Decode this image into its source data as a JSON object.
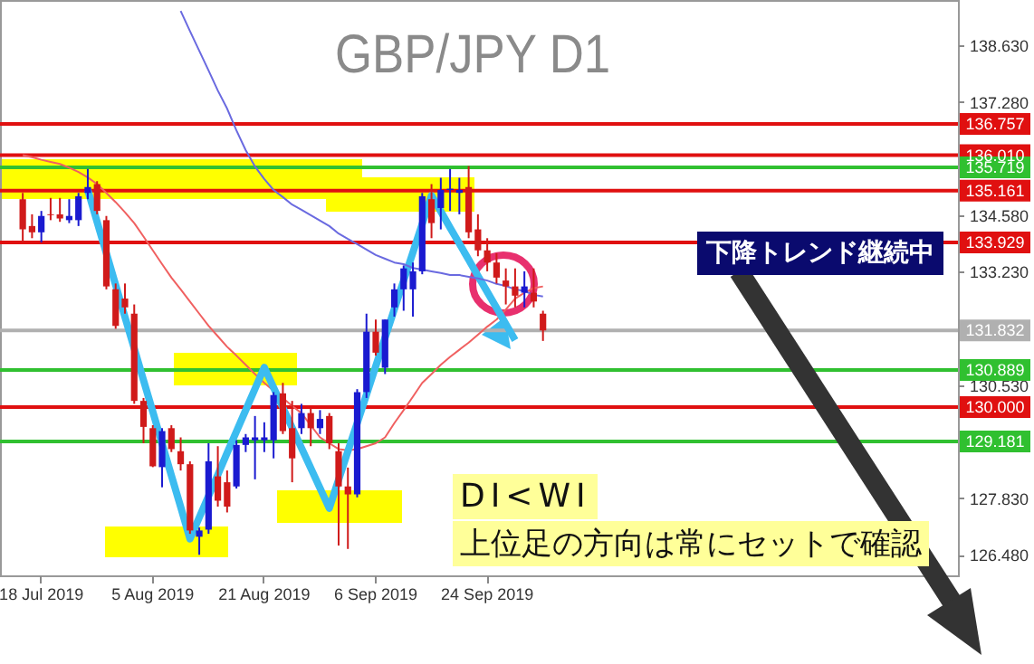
{
  "chart_data": {
    "type": "candlestick",
    "title": "GBP/JPY D1",
    "categories": [
      null,
      null,
      "18 Jul 2019",
      null,
      null,
      null,
      null,
      null,
      null,
      null,
      null,
      null,
      null,
      null,
      "5 Aug 2019",
      null,
      null,
      null,
      null,
      null,
      null,
      null,
      null,
      null,
      null,
      null,
      "21 Aug 2019",
      null,
      null,
      null,
      null,
      null,
      null,
      null,
      null,
      null,
      null,
      null,
      "6 Sep 2019",
      null,
      null,
      null,
      null,
      null,
      null,
      null,
      null,
      null,
      null,
      null,
      "24 Sep 2019",
      null,
      null,
      null,
      null,
      null,
      null
    ],
    "ohlc": [
      [
        134.96,
        135.11,
        133.93,
        134.24
      ],
      [
        134.32,
        134.6,
        134.03,
        134.17
      ],
      [
        134.17,
        134.68,
        133.93,
        134.56
      ],
      [
        134.6,
        134.99,
        134.46,
        134.58
      ],
      [
        134.6,
        134.99,
        134.42,
        134.5
      ],
      [
        134.46,
        134.96,
        134.39,
        134.56
      ],
      [
        134.46,
        135.11,
        134.32,
        135.03
      ],
      [
        135.11,
        135.68,
        134.96,
        135.25
      ],
      [
        135.32,
        135.39,
        134.6,
        134.68
      ],
      [
        134.46,
        134.56,
        132.81,
        132.88
      ],
      [
        132.81,
        132.95,
        131.87,
        131.94
      ],
      [
        132.59,
        132.95,
        132.23,
        132.38
      ],
      [
        132.23,
        132.45,
        130.08,
        130.15
      ],
      [
        130.15,
        130.22,
        129.14,
        129.53
      ],
      [
        129.5,
        129.57,
        128.57,
        128.59
      ],
      [
        128.57,
        129.5,
        128.09,
        129.43
      ],
      [
        129.5,
        129.57,
        128.93,
        129.0
      ],
      [
        128.95,
        129.28,
        128.49,
        128.64
      ],
      [
        128.64,
        128.71,
        126.98,
        127.06
      ],
      [
        126.91,
        127.13,
        126.48,
        127.06
      ],
      [
        127.08,
        129.14,
        126.98,
        128.71
      ],
      [
        128.35,
        129.07,
        127.63,
        127.77
      ],
      [
        128.21,
        128.49,
        127.49,
        127.63
      ],
      [
        128.11,
        129.21,
        128.06,
        129.1
      ],
      [
        129.1,
        129.36,
        128.93,
        129.28
      ],
      [
        129.21,
        129.79,
        128.28,
        129.28
      ],
      [
        129.21,
        129.64,
        128.93,
        129.28
      ],
      [
        129.21,
        130.36,
        128.78,
        130.29
      ],
      [
        130.33,
        130.58,
        129.36,
        129.43
      ],
      [
        129.5,
        130.15,
        128.21,
        128.78
      ],
      [
        129.5,
        130.08,
        129.36,
        129.86
      ],
      [
        129.86,
        130.0,
        129.07,
        129.5
      ],
      [
        129.5,
        129.93,
        129.36,
        129.72
      ],
      [
        129.79,
        129.86,
        129.0,
        129.14
      ],
      [
        128.95,
        129.14,
        126.7,
        128.11
      ],
      [
        128.11,
        128.56,
        126.62,
        127.92
      ],
      [
        127.92,
        130.43,
        127.85,
        130.36
      ],
      [
        130.36,
        132.23,
        130.22,
        131.8
      ],
      [
        131.8,
        132.09,
        131.23,
        131.3
      ],
      [
        130.94,
        132.09,
        130.79,
        132.09
      ],
      [
        132.38,
        132.95,
        132.16,
        132.81
      ],
      [
        132.81,
        133.38,
        132.3,
        133.31
      ],
      [
        132.81,
        133.45,
        132.16,
        133.24
      ],
      [
        133.24,
        135.11,
        133.17,
        135.03
      ],
      [
        134.96,
        135.32,
        134.03,
        134.39
      ],
      [
        134.75,
        135.47,
        134.24,
        135.18
      ],
      [
        135.18,
        135.68,
        134.68,
        135.21
      ],
      [
        135.11,
        135.47,
        134.6,
        135.18
      ],
      [
        135.25,
        135.75,
        134.03,
        134.17
      ],
      [
        134.24,
        134.6,
        133.6,
        133.74
      ],
      [
        133.74,
        134.03,
        133.24,
        133.45
      ],
      [
        133.45,
        133.67,
        132.95,
        133.09
      ],
      [
        133.02,
        133.31,
        132.45,
        132.88
      ],
      [
        132.88,
        133.31,
        132.38,
        132.66
      ],
      [
        132.73,
        133.24,
        132.38,
        132.88
      ],
      [
        132.73,
        133.31,
        132.38,
        132.52
      ],
      [
        132.23,
        132.3,
        131.58,
        131.83
      ]
    ],
    "colors": [
      "#d01a1a",
      "#d01a1a",
      "#1a1ad0",
      "#d01a1a",
      "#d01a1a",
      "#1a1ad0",
      "#1a1ad0",
      "#1a1ad0",
      "#d01a1a",
      "#d01a1a",
      "#d01a1a",
      "#d01a1a",
      "#d01a1a",
      "#d01a1a",
      "#d01a1a",
      "#1a1ad0",
      "#d01a1a",
      "#d01a1a",
      "#d01a1a",
      "#1a1ad0",
      "#1a1ad0",
      "#d01a1a",
      "#d01a1a",
      "#1a1ad0",
      "#1a1ad0",
      "#1a1ad0",
      "#1a1ad0",
      "#1a1ad0",
      "#d01a1a",
      "#d01a1a",
      "#1a1ad0",
      "#d01a1a",
      "#1a1ad0",
      "#d01a1a",
      "#d01a1a",
      "#d01a1a",
      "#1a1ad0",
      "#1a1ad0",
      "#d01a1a",
      "#1a1ad0",
      "#1a1ad0",
      "#1a1ad0",
      "#1a1ad0",
      "#1a1ad0",
      "#d01a1a",
      "#1a1ad0",
      "#1a1ad0",
      "#1a1ad0",
      "#d01a1a",
      "#d01a1a",
      "#d01a1a",
      "#d01a1a",
      "#d01a1a",
      "#d01a1a",
      "#1a1ad0",
      "#d01a1a",
      "#d01a1a"
    ],
    "series": [
      {
        "type": "line",
        "color": "#f06060",
        "values": [
          136.01,
          135.96,
          135.9,
          135.85,
          135.8,
          135.71,
          135.61,
          135.48,
          135.32,
          135.11,
          134.89,
          134.65,
          134.39,
          134.07,
          133.74,
          133.41,
          133.09,
          132.81,
          132.52,
          132.23,
          131.94,
          131.69,
          131.44,
          131.23,
          131.01,
          130.79,
          130.58,
          130.39,
          130.22,
          130.03,
          129.86,
          129.57,
          129.28,
          129.14,
          129.0,
          128.97,
          129.0,
          129.07,
          129.14,
          129.28,
          129.62,
          129.93,
          130.25,
          130.58,
          130.79,
          131.01,
          131.2,
          131.37,
          131.54,
          131.73,
          131.92,
          132.09,
          132.33,
          132.59,
          132.73,
          132.84,
          132.88
        ]
      },
      {
        "type": "line",
        "color": "#3cbcf0",
        "values": [
          null,
          null,
          null,
          null,
          null,
          null,
          null,
          135.18,
          134.42,
          133.67,
          132.91,
          132.15,
          131.4,
          130.64,
          129.89,
          129.13,
          128.37,
          127.62,
          126.86,
          127.37,
          127.88,
          128.39,
          128.91,
          129.42,
          129.93,
          130.44,
          130.95,
          130.47,
          129.99,
          129.51,
          129.03,
          128.55,
          128.07,
          127.59,
          128.27,
          128.95,
          129.62,
          130.3,
          130.98,
          131.66,
          132.34,
          133.02,
          133.69,
          134.37,
          135.05,
          134.67,
          134.28,
          133.9,
          133.52,
          133.13,
          132.75,
          132.37,
          131.98,
          131.6,
          null,
          null,
          null
        ]
      },
      {
        "type": "line",
        "color": "#6a6ae0",
        "values": [
          null,
          null,
          null,
          null,
          null,
          null,
          null,
          null,
          null,
          null,
          null,
          null,
          null,
          null,
          null,
          null,
          null,
          139.45,
          138.97,
          138.5,
          138.03,
          137.55,
          137.12,
          136.6,
          136.13,
          135.74,
          135.44,
          135.18,
          135.01,
          134.83,
          134.71,
          134.58,
          134.45,
          134.32,
          134.14,
          134.01,
          133.89,
          133.76,
          133.63,
          133.54,
          133.45,
          133.41,
          133.32,
          133.28,
          133.24,
          133.2,
          133.15,
          133.15,
          133.11,
          133.07,
          133.02,
          132.94,
          132.89,
          132.81,
          132.77,
          132.68,
          132.64
        ]
      }
    ],
    "ylim": [
      125.99,
      139.71
    ],
    "yticks": [
      {
        "value": 126.48,
        "label": "126.480"
      },
      {
        "value": 127.83,
        "label": "127.830"
      },
      {
        "value": 130.53,
        "label": "130.530"
      },
      {
        "value": 133.23,
        "label": "133.230"
      },
      {
        "value": 134.58,
        "label": "134.580"
      },
      {
        "value": 137.28,
        "label": "137.280"
      },
      {
        "value": 138.63,
        "label": "138.630"
      }
    ],
    "ref_lines": [
      {
        "axis": "y",
        "value": 136.757,
        "label": "136.757",
        "color": "#e01010"
      },
      {
        "axis": "y",
        "value": 136.01,
        "label": "136.010",
        "color": "#e01010"
      },
      {
        "axis": "y",
        "value": 135.719,
        "label": "135.719",
        "color": "#30c030"
      },
      {
        "axis": "y",
        "value": 135.161,
        "label": "135.161",
        "color": "#e01010"
      },
      {
        "axis": "y",
        "value": 133.929,
        "label": "133.929",
        "color": "#e01010"
      },
      {
        "axis": "y",
        "value": 131.832,
        "label": "131.832",
        "color": "#b0b0b0"
      },
      {
        "axis": "y",
        "value": 130.889,
        "label": "130.889",
        "color": "#30c030"
      },
      {
        "axis": "y",
        "value": 130.0,
        "label": "130.000",
        "color": "#e01010"
      },
      {
        "axis": "y",
        "value": 129.181,
        "label": "129.181",
        "color": "#30c030"
      }
    ],
    "annotations": [
      "下降トレンド継続中",
      "DI<WI",
      "上位足の方向は常にセットで確認"
    ]
  }
}
